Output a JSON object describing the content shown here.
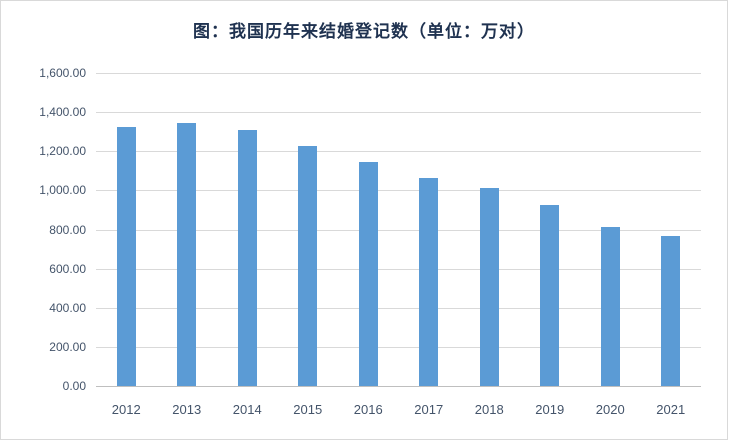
{
  "chart_data": {
    "type": "bar",
    "title": "图：我国历年来结婚登记数（单位：万对）",
    "categories": [
      "2012",
      "2013",
      "2014",
      "2015",
      "2016",
      "2017",
      "2018",
      "2019",
      "2020",
      "2021"
    ],
    "values": [
      1323.7,
      1346.9,
      1306.7,
      1224.7,
      1142.8,
      1063.1,
      1013.9,
      927.3,
      814.3,
      764.3
    ],
    "xlabel": "",
    "ylabel": "",
    "ylim": [
      0,
      1600
    ],
    "ytick_step": 200,
    "ytick_format": "thousands-comma-2dp",
    "grid": true,
    "legend_position": "none",
    "bar_color": "#5b9bd5",
    "gridline_color": "#d9d9d9",
    "axis_label_color": "#44546a",
    "title_color": "#1f3250"
  }
}
